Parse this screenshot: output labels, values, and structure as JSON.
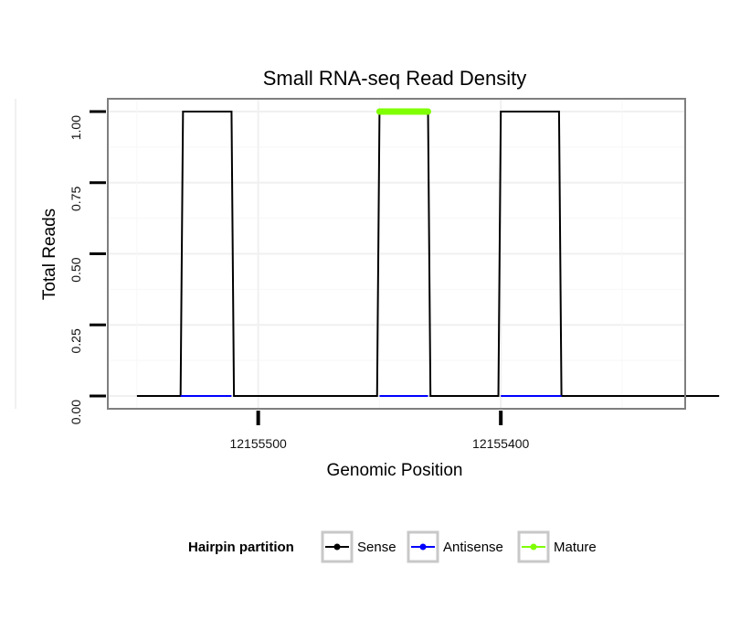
{
  "chart_data": {
    "type": "line",
    "title": "Small RNA-seq Read Density",
    "xlabel": "Genomic Position",
    "ylabel": "Total Reads",
    "x_reversed": true,
    "xlim": [
      12155562,
      12155324
    ],
    "ylim": [
      -0.045,
      1.045
    ],
    "yticks": [
      0,
      0.25,
      0.5,
      0.75,
      1.0
    ],
    "ytick_labels": [
      "0.00",
      "0.25",
      "0.50",
      "0.75",
      "1.00"
    ],
    "xticks": [
      12155500,
      12155400
    ],
    "xtick_labels": [
      "12155500",
      "12155400"
    ],
    "grid": true,
    "series": [
      {
        "name": "Sense",
        "color": "#000000",
        "x": [
          12155550,
          12155532,
          12155531,
          12155511,
          12155510,
          12155451,
          12155450,
          12155430,
          12155429,
          12155401,
          12155400,
          12155376,
          12155375,
          12155310
        ],
        "y": [
          0,
          0,
          1,
          1,
          0,
          0,
          1,
          1,
          0,
          0,
          1,
          1,
          0,
          0
        ]
      },
      {
        "name": "Antisense",
        "color": "#0000ff",
        "x": [
          12155532,
          12155511,
          12155450,
          12155430,
          12155400,
          12155375
        ],
        "y": [
          0,
          0,
          0,
          0,
          0,
          0
        ],
        "segments": [
          [
            0,
            1
          ],
          [
            2,
            3
          ],
          [
            4,
            5
          ]
        ]
      },
      {
        "name": "Mature",
        "color": "#7fff00",
        "x": [
          12155450,
          12155430
        ],
        "y": [
          1,
          1
        ]
      }
    ],
    "legend": {
      "title": "Hairpin partition",
      "position": "bottom",
      "entries": [
        {
          "label": "Sense",
          "color": "#000000"
        },
        {
          "label": "Antisense",
          "color": "#0000ff"
        },
        {
          "label": "Mature",
          "color": "#7fff00"
        }
      ]
    }
  }
}
